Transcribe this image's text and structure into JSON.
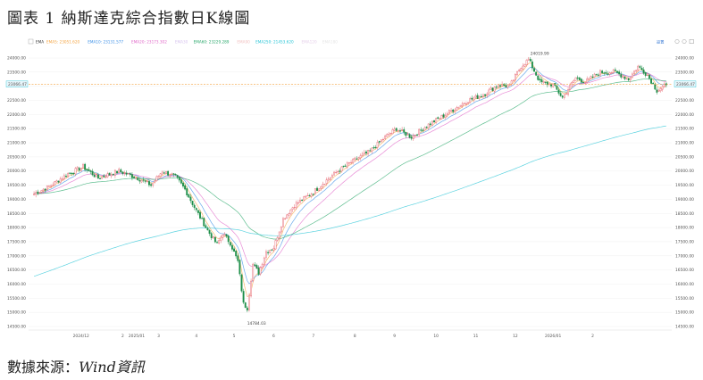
{
  "title": "圖表 1 納斯達克綜合指數日K線圖",
  "source_prefix": "數據來源：",
  "source_name": "Wind資訊",
  "legend": {
    "ema_label": "EMA",
    "items": [
      {
        "label": "EMA5",
        "value": "23051.620",
        "color": "#f4a340"
      },
      {
        "label": "EMA10",
        "value": "23131.577",
        "color": "#3a8ee6"
      },
      {
        "label": "EMA20",
        "value": "23173.302",
        "color": "#e066c8"
      },
      {
        "label": "EMA30",
        "value": "",
        "color": "#d7c3ee"
      },
      {
        "label": "EMA60",
        "value": "23229.289",
        "color": "#2aa86b"
      },
      {
        "label": "EMA90",
        "value": "",
        "color": "#f2c2c2"
      },
      {
        "label": "EMA250",
        "value": "21453.620",
        "color": "#27c4d6"
      },
      {
        "label": "EMA120",
        "value": "",
        "color": "#e5cfe9"
      },
      {
        "label": "EMA180",
        "value": "",
        "color": "#e5e5e5"
      }
    ],
    "toolbar_label": "設置"
  },
  "current_price_label": "23066.47",
  "chart_data": {
    "type": "candlestick",
    "x_tick_labels": [
      "2024/12",
      "2025/01",
      "2",
      "3",
      "4",
      "5",
      "6",
      "7",
      "8",
      "9",
      "10",
      "11",
      "12",
      "2026/01",
      "2"
    ],
    "y_tick_labels": [
      "24000.00",
      "23500.00",
      "23000.00",
      "22500.00",
      "22000.00",
      "21500.00",
      "21000.00",
      "20500.00",
      "20000.00",
      "19500.00",
      "19000.00",
      "18500.00",
      "18000.00",
      "17500.00",
      "17000.00",
      "16500.00",
      "16000.00",
      "15500.00",
      "15000.00",
      "14500.00"
    ],
    "ylim": [
      14500,
      24000
    ],
    "annotations": [
      {
        "label": "24019.99",
        "value": 24019.99,
        "kind": "high"
      },
      {
        "label": "14784.03",
        "value": 14784.03,
        "kind": "low"
      }
    ],
    "current_price": 23066.47,
    "anchors": [
      [
        0,
        19200
      ],
      [
        8,
        19450
      ],
      [
        18,
        19900
      ],
      [
        26,
        20150
      ],
      [
        34,
        19750
      ],
      [
        45,
        20000
      ],
      [
        55,
        19750
      ],
      [
        62,
        19500
      ],
      [
        68,
        20000
      ],
      [
        75,
        19800
      ],
      [
        80,
        19350
      ],
      [
        86,
        18600
      ],
      [
        92,
        17900
      ],
      [
        97,
        17400
      ],
      [
        100,
        17800
      ],
      [
        104,
        17450
      ],
      [
        108,
        16800
      ],
      [
        111,
        15300
      ],
      [
        113,
        15150
      ],
      [
        116,
        16700
      ],
      [
        119,
        16400
      ],
      [
        123,
        17150
      ],
      [
        127,
        17300
      ],
      [
        132,
        18300
      ],
      [
        138,
        18800
      ],
      [
        148,
        19250
      ],
      [
        152,
        19500
      ],
      [
        160,
        19950
      ],
      [
        170,
        20400
      ],
      [
        178,
        20700
      ],
      [
        186,
        21200
      ],
      [
        192,
        21500
      ],
      [
        200,
        21200
      ],
      [
        208,
        21600
      ],
      [
        218,
        22000
      ],
      [
        230,
        22500
      ],
      [
        238,
        22700
      ],
      [
        246,
        23050
      ],
      [
        252,
        23000
      ],
      [
        258,
        23700
      ],
      [
        262,
        23950
      ],
      [
        268,
        23150
      ],
      [
        275,
        23050
      ],
      [
        280,
        22600
      ],
      [
        287,
        23300
      ],
      [
        292,
        23150
      ],
      [
        300,
        23500
      ],
      [
        308,
        23500
      ],
      [
        315,
        23250
      ],
      [
        320,
        23700
      ],
      [
        325,
        23400
      ],
      [
        330,
        22850
      ],
      [
        335,
        23050
      ]
    ],
    "ema_series": [
      {
        "name": "EMA5",
        "span": 5,
        "color": "#f4a340"
      },
      {
        "name": "EMA10",
        "span": 10,
        "color": "#3a8ee6"
      },
      {
        "name": "EMA20",
        "span": 20,
        "color": "#e066c8"
      },
      {
        "name": "EMA60",
        "span": 60,
        "color": "#2aa86b"
      },
      {
        "name": "EMA250",
        "span": 250,
        "color": "#27c4d6",
        "seed": 16250
      }
    ],
    "up_color": "#e8707a",
    "down_color": "#1f8f4a"
  }
}
